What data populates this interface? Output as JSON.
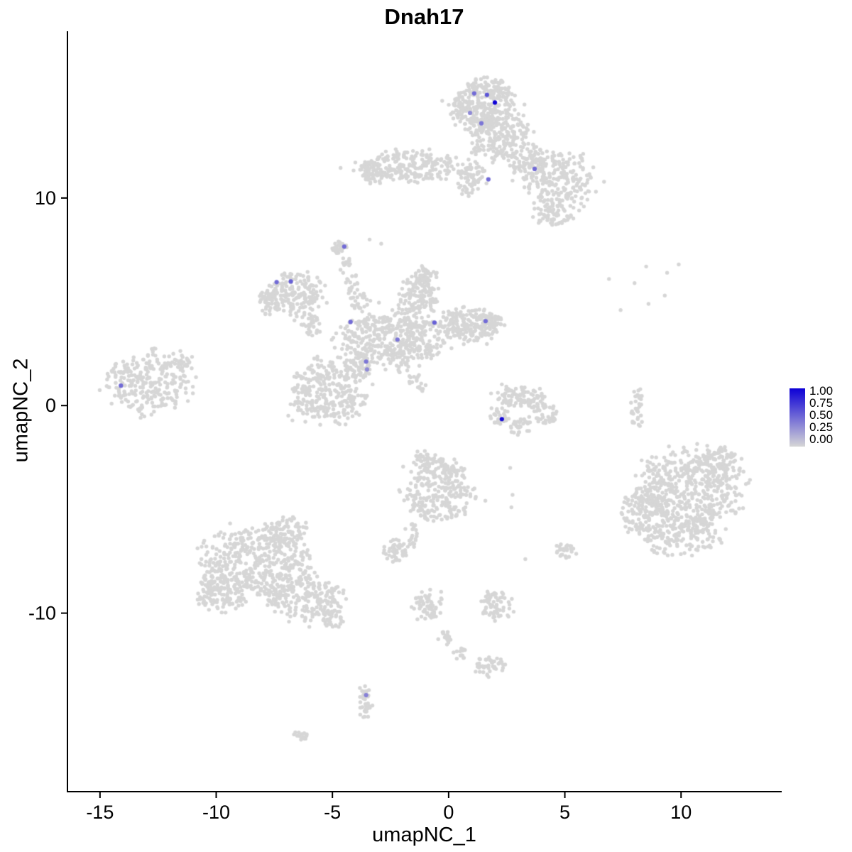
{
  "figure": {
    "title": "Dnah17",
    "x_label": "umapNC_1",
    "y_label": "umapNC_2"
  },
  "legend": {
    "labels": [
      "1.00",
      "0.75",
      "0.50",
      "0.25",
      "0.00"
    ],
    "color_high": "#0D00D6",
    "color_low": "#D6D6D6"
  },
  "chart_data": {
    "type": "scatter",
    "title": "Dnah17",
    "xlabel": "umapNC_1",
    "ylabel": "umapNC_2",
    "xlim": [
      -16.4,
      14.3
    ],
    "ylim": [
      -18.6,
      18.0
    ],
    "x_ticks": [
      -15,
      -10,
      -5,
      0,
      5,
      10
    ],
    "y_ticks": [
      -10,
      0,
      10
    ],
    "grid": false,
    "legend_position": "right",
    "colorbar": {
      "min": 0.0,
      "max": 1.0,
      "tick_labels": [
        "1.00",
        "0.75",
        "0.50",
        "0.25",
        "0.00"
      ]
    },
    "point_color": "#D6D6D6",
    "point_radius": 2.7,
    "highlight_radius": 3.1,
    "seed": 7,
    "background_clusters": [
      {
        "cx": 1.5,
        "cy": 14.5,
        "rx": 1.4,
        "ry": 1.2,
        "n": 320
      },
      {
        "cx": 2.2,
        "cy": 12.9,
        "rx": 1.3,
        "ry": 1.1,
        "n": 200
      },
      {
        "cx": 0.9,
        "cy": 11.0,
        "rx": 0.7,
        "ry": 0.8,
        "n": 70
      },
      {
        "cx": -1.7,
        "cy": 11.5,
        "rx": 2.2,
        "ry": 0.75,
        "n": 240
      },
      {
        "cx": -3.3,
        "cy": 11.3,
        "rx": 0.5,
        "ry": 0.5,
        "n": 40
      },
      {
        "cx": 3.4,
        "cy": 11.8,
        "rx": 0.9,
        "ry": 0.9,
        "n": 90
      },
      {
        "cx": 4.8,
        "cy": 10.8,
        "rx": 1.5,
        "ry": 1.4,
        "n": 220
      },
      {
        "cx": 4.5,
        "cy": 9.2,
        "rx": 0.8,
        "ry": 0.6,
        "n": 60
      },
      {
        "cx": -4.7,
        "cy": 7.65,
        "rx": 0.35,
        "ry": 0.35,
        "n": 28
      },
      {
        "cx": -4.4,
        "cy": 6.8,
        "rx": 0.25,
        "ry": 0.4,
        "n": 14
      },
      {
        "cx": -4.1,
        "cy": 5.9,
        "rx": 0.3,
        "ry": 0.5,
        "n": 18
      },
      {
        "cx": -3.8,
        "cy": 5.0,
        "rx": 0.4,
        "ry": 0.5,
        "n": 25
      },
      {
        "cx": -6.6,
        "cy": 5.4,
        "rx": 1.3,
        "ry": 1.0,
        "n": 190
      },
      {
        "cx": -7.7,
        "cy": 4.9,
        "rx": 0.5,
        "ry": 0.5,
        "n": 40
      },
      {
        "cx": -6.0,
        "cy": 3.9,
        "rx": 0.45,
        "ry": 0.6,
        "n": 35
      },
      {
        "cx": -2.3,
        "cy": 3.3,
        "rx": 2.4,
        "ry": 1.2,
        "n": 420
      },
      {
        "cx": 0.8,
        "cy": 3.9,
        "rx": 1.2,
        "ry": 0.85,
        "n": 160
      },
      {
        "cx": 1.7,
        "cy": 3.95,
        "rx": 0.6,
        "ry": 0.6,
        "n": 70
      },
      {
        "cx": -1.3,
        "cy": 5.3,
        "rx": 0.9,
        "ry": 0.9,
        "n": 120
      },
      {
        "cx": -1.0,
        "cy": 6.3,
        "rx": 0.5,
        "ry": 0.45,
        "n": 40
      },
      {
        "cx": -5.1,
        "cy": 0.6,
        "rx": 1.6,
        "ry": 1.5,
        "n": 300
      },
      {
        "cx": -3.8,
        "cy": 1.9,
        "rx": 0.55,
        "ry": 0.65,
        "n": 60
      },
      {
        "cx": -2.5,
        "cy": 2.5,
        "rx": 0.3,
        "ry": 0.3,
        "n": 14
      },
      {
        "cx": -2.0,
        "cy": 1.9,
        "rx": 0.3,
        "ry": 0.3,
        "n": 12
      },
      {
        "cx": -1.5,
        "cy": 1.3,
        "rx": 0.28,
        "ry": 0.28,
        "n": 10
      },
      {
        "cx": -1.15,
        "cy": 0.85,
        "rx": 0.22,
        "ry": 0.22,
        "n": 8
      },
      {
        "cx": -12.9,
        "cy": 1.1,
        "rx": 1.8,
        "ry": 1.4,
        "n": 260
      },
      {
        "cx": -11.5,
        "cy": 2.1,
        "rx": 0.5,
        "ry": 0.45,
        "n": 30
      },
      {
        "cx": 2.7,
        "cy": 0.5,
        "rx": 0.7,
        "ry": 0.6,
        "n": 55
      },
      {
        "cx": 3.6,
        "cy": 0.3,
        "rx": 0.6,
        "ry": 0.55,
        "n": 45
      },
      {
        "cx": 4.2,
        "cy": -0.4,
        "rx": 0.5,
        "ry": 0.5,
        "n": 35
      },
      {
        "cx": 2.2,
        "cy": -0.5,
        "rx": 0.45,
        "ry": 0.5,
        "n": 30
      },
      {
        "cx": 3.2,
        "cy": -1.0,
        "rx": 0.6,
        "ry": 0.4,
        "n": 30
      },
      {
        "cx": 8.1,
        "cy": 0.0,
        "rx": 0.28,
        "ry": 1.0,
        "n": 34
      },
      {
        "cx": 10.3,
        "cy": -4.2,
        "rx": 2.2,
        "ry": 2.0,
        "n": 500
      },
      {
        "cx": 8.4,
        "cy": -5.2,
        "rx": 1.0,
        "ry": 1.2,
        "n": 130
      },
      {
        "cx": 10.0,
        "cy": -6.3,
        "rx": 1.6,
        "ry": 0.9,
        "n": 140
      },
      {
        "cx": 11.7,
        "cy": -2.8,
        "rx": 1.0,
        "ry": 0.8,
        "n": 90
      },
      {
        "cx": -0.4,
        "cy": -4.1,
        "rx": 1.5,
        "ry": 1.5,
        "n": 280
      },
      {
        "cx": -1.0,
        "cy": -2.6,
        "rx": 0.45,
        "ry": 0.45,
        "n": 30
      },
      {
        "cx": -1.6,
        "cy": -6.3,
        "rx": 0.25,
        "ry": 0.55,
        "n": 22
      },
      {
        "cx": -2.35,
        "cy": -7.0,
        "rx": 0.55,
        "ry": 0.5,
        "n": 48
      },
      {
        "cx": -8.3,
        "cy": -7.6,
        "rx": 2.3,
        "ry": 1.8,
        "n": 460
      },
      {
        "cx": -6.1,
        "cy": -9.3,
        "rx": 1.6,
        "ry": 1.1,
        "n": 210
      },
      {
        "cx": -9.9,
        "cy": -9.0,
        "rx": 1.1,
        "ry": 0.9,
        "n": 120
      },
      {
        "cx": -7.0,
        "cy": -6.1,
        "rx": 0.9,
        "ry": 0.7,
        "n": 80
      },
      {
        "cx": -5.0,
        "cy": -10.3,
        "rx": 0.45,
        "ry": 0.45,
        "n": 28
      },
      {
        "cx": -0.85,
        "cy": -9.6,
        "rx": 0.6,
        "ry": 0.75,
        "n": 60
      },
      {
        "cx": 2.1,
        "cy": -9.6,
        "rx": 0.7,
        "ry": 0.75,
        "n": 65
      },
      {
        "cx": -0.2,
        "cy": -11.3,
        "rx": 0.3,
        "ry": 0.45,
        "n": 16
      },
      {
        "cx": 0.5,
        "cy": -12.0,
        "rx": 0.3,
        "ry": 0.4,
        "n": 14
      },
      {
        "cx": 1.8,
        "cy": -12.6,
        "rx": 0.6,
        "ry": 0.5,
        "n": 45
      },
      {
        "cx": -3.55,
        "cy": -14.3,
        "rx": 0.3,
        "ry": 0.8,
        "n": 38
      },
      {
        "cx": -6.3,
        "cy": -15.9,
        "rx": 0.4,
        "ry": 0.25,
        "n": 14
      },
      {
        "cx": 5.05,
        "cy": -7.0,
        "rx": 0.45,
        "ry": 0.4,
        "n": 26
      }
    ],
    "background_singles": [
      [
        6.9,
        6.1
      ],
      [
        8.5,
        6.7
      ],
      [
        9.4,
        6.4
      ],
      [
        9.9,
        6.8
      ],
      [
        8.0,
        5.9
      ],
      [
        7.4,
        4.6
      ],
      [
        8.6,
        4.9
      ],
      [
        9.3,
        5.3
      ],
      [
        2.7,
        -4.9
      ],
      [
        3.3,
        -7.4
      ],
      [
        2.65,
        -3.0
      ],
      [
        2.75,
        -4.3
      ],
      [
        -3.4,
        8.0
      ],
      [
        -2.9,
        7.8
      ]
    ],
    "expressing_points": [
      {
        "x": 1.1,
        "y": 15.04,
        "value": 0.5
      },
      {
        "x": 1.65,
        "y": 14.97,
        "value": 0.6
      },
      {
        "x": 1.99,
        "y": 14.6,
        "value": 1.0
      },
      {
        "x": 0.92,
        "y": 14.1,
        "value": 0.35
      },
      {
        "x": 1.41,
        "y": 13.6,
        "value": 0.45
      },
      {
        "x": 1.71,
        "y": 10.9,
        "value": 0.5
      },
      {
        "x": 3.7,
        "y": 11.4,
        "value": 0.5
      },
      {
        "x": -4.49,
        "y": 7.66,
        "value": 0.5
      },
      {
        "x": -7.4,
        "y": 5.95,
        "value": 0.5
      },
      {
        "x": -6.79,
        "y": 5.98,
        "value": 0.55
      },
      {
        "x": -4.22,
        "y": 4.03,
        "value": 0.5
      },
      {
        "x": -2.2,
        "y": 3.18,
        "value": 0.45
      },
      {
        "x": -0.61,
        "y": 4.0,
        "value": 0.55
      },
      {
        "x": 1.59,
        "y": 4.07,
        "value": 0.5
      },
      {
        "x": -3.55,
        "y": 2.12,
        "value": 0.45
      },
      {
        "x": -3.51,
        "y": 1.74,
        "value": 0.35
      },
      {
        "x": -14.1,
        "y": 0.96,
        "value": 0.5
      },
      {
        "x": 2.29,
        "y": -0.65,
        "value": 0.95
      },
      {
        "x": -3.55,
        "y": -13.95,
        "value": 0.4
      }
    ]
  }
}
